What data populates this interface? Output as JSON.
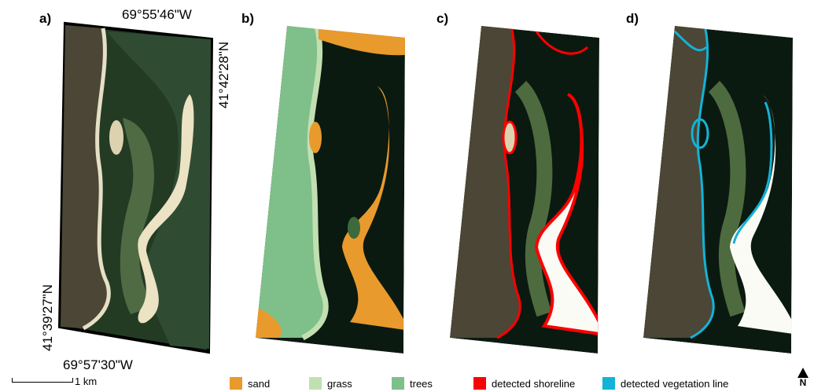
{
  "panels": {
    "a": {
      "label": "a)"
    },
    "b": {
      "label": "b)"
    },
    "c": {
      "label": "c)"
    },
    "d": {
      "label": "d)"
    }
  },
  "coordinates": {
    "top_lon": "69°55'46\"W",
    "right_lat": "41°42'28\"N",
    "left_lat": "41°39'27\"N",
    "bottom_lon": "69°57'30\"W"
  },
  "legend": [
    {
      "label": "sand",
      "color": "#e89a2c"
    },
    {
      "label": "grass",
      "color": "#c2dfb2"
    },
    {
      "label": "trees",
      "color": "#7fbf8a"
    },
    {
      "label": "detected shoreline",
      "color": "#ff0000"
    },
    {
      "label": "detected vegetation line",
      "color": "#13b3d8"
    }
  ],
  "scale": {
    "label": "1 km"
  },
  "north": {
    "label": "N",
    "icon": "north-arrow-icon"
  },
  "colors": {
    "water_dark": "#0b1a10",
    "water_green": "#2e4a2c",
    "shallow": "#4d6b3f",
    "land_imagery": "#4a4636",
    "sand_white": "#fbfbf6"
  }
}
